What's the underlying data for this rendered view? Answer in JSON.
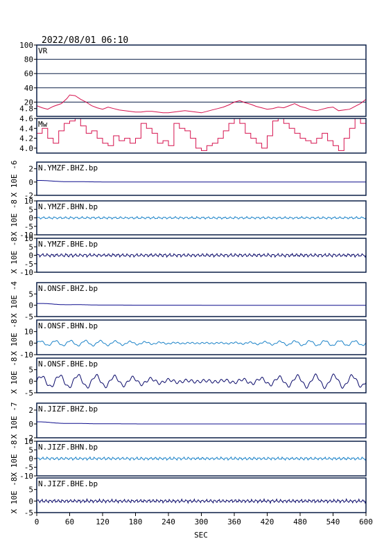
{
  "header": {
    "timestamp": "2022/08/01 06:10"
  },
  "colors": {
    "vr": "#d6124e",
    "mw": "#d6124e",
    "bhz": "#0c0c8c",
    "bhn": "#1a82c8",
    "bhe": "#0a0a6a",
    "frame": "#0a1e46"
  },
  "chart_data": {
    "type": "line",
    "xlabel": "SEC",
    "xlim": [
      0,
      600
    ],
    "xticks": [
      "0",
      "60",
      "120",
      "180",
      "240",
      "300",
      "360",
      "420",
      "480",
      "540",
      "600"
    ],
    "panels": [
      {
        "label": "VR",
        "ylim": [
          0,
          100
        ],
        "yticks": [
          {
            "v": 20,
            "t": "20"
          },
          {
            "v": 40,
            "t": "40"
          },
          {
            "v": 60,
            "t": "60"
          },
          {
            "v": 80,
            "t": "80"
          },
          {
            "v": 100,
            "t": "100"
          }
        ],
        "gridlines": [
          20,
          40,
          60,
          80
        ],
        "series": [
          {
            "color_key": "vr",
            "x": [
              0,
              10,
              20,
              30,
              45,
              55,
              60,
              70,
              80,
              90,
              100,
              110,
              120,
              130,
              140,
              150,
              160,
              170,
              180,
              190,
              200,
              210,
              220,
              230,
              240,
              250,
              260,
              270,
              280,
              290,
              300,
              310,
              320,
              330,
              340,
              350,
              360,
              370,
              380,
              390,
              400,
              410,
              420,
              430,
              440,
              450,
              460,
              470,
              480,
              490,
              500,
              510,
              520,
              530,
              540,
              550,
              560,
              570,
              580,
              590,
              600
            ],
            "y": [
              15,
              12,
              10,
              14,
              18,
              25,
              30,
              29,
              24,
              20,
              15,
              12,
              10,
              13,
              11,
              9,
              8,
              7,
              6,
              6,
              7,
              7,
              6,
              5,
              5,
              6,
              7,
              8,
              7,
              6,
              5,
              7,
              9,
              11,
              13,
              16,
              20,
              22,
              19,
              17,
              14,
              12,
              10,
              11,
              13,
              12,
              15,
              18,
              14,
              12,
              9,
              8,
              10,
              12,
              13,
              8,
              9,
              10,
              14,
              18,
              24
            ]
          }
        ]
      },
      {
        "label": "Mw",
        "ylim": [
          3.9,
          4.6
        ],
        "yticks": [
          {
            "v": 4.0,
            "t": "4.0"
          },
          {
            "v": 4.2,
            "t": "4.2"
          },
          {
            "v": 4.4,
            "t": "4.4"
          },
          {
            "v": 4.6,
            "t": "4.6"
          },
          {
            "v": 4.8,
            "t": "4.8"
          }
        ],
        "series": [
          {
            "color_key": "mw",
            "x": [
              0,
              10,
              20,
              30,
              40,
              50,
              60,
              70,
              80,
              90,
              100,
              110,
              120,
              130,
              140,
              150,
              160,
              170,
              180,
              190,
              200,
              210,
              220,
              230,
              240,
              250,
              260,
              270,
              280,
              290,
              300,
              310,
              320,
              330,
              340,
              350,
              360,
              370,
              380,
              390,
              400,
              410,
              420,
              430,
              440,
              450,
              460,
              470,
              480,
              490,
              500,
              510,
              520,
              530,
              540,
              550,
              560,
              570,
              580,
              590,
              600
            ],
            "y": [
              4.3,
              4.4,
              4.2,
              4.1,
              4.35,
              4.5,
              4.55,
              4.6,
              4.45,
              4.3,
              4.35,
              4.2,
              4.1,
              4.05,
              4.25,
              4.15,
              4.2,
              4.1,
              4.2,
              4.5,
              4.4,
              4.3,
              4.1,
              4.15,
              4.05,
              4.5,
              4.4,
              4.35,
              4.2,
              4.0,
              3.95,
              4.05,
              4.1,
              4.2,
              4.35,
              4.5,
              4.6,
              4.5,
              4.3,
              4.2,
              4.1,
              4.0,
              4.25,
              4.55,
              4.6,
              4.5,
              4.4,
              4.3,
              4.2,
              4.15,
              4.1,
              4.2,
              4.3,
              4.15,
              4.05,
              3.95,
              4.2,
              4.4,
              4.6,
              4.5,
              4.3
            ]
          }
        ]
      },
      {
        "label": "N.YMZF.BHZ.bp",
        "unit": "X 10E -6",
        "ylim": [
          -2,
          3
        ],
        "yticks": [
          {
            "v": -2,
            "t": "-2"
          },
          {
            "v": 0,
            "t": "0"
          },
          {
            "v": 2,
            "t": "2"
          }
        ],
        "color_key": "bhz",
        "wave": {
          "type": "decay",
          "amp": 0.4,
          "cycles": 9,
          "decay": 0.08
        }
      },
      {
        "label": "N.YMZF.BHN.bp",
        "unit": "X 10E -8",
        "ylim": [
          -10,
          10
        ],
        "yticks": [
          {
            "v": -10,
            "t": "-10"
          },
          {
            "v": -5,
            "t": "-5"
          },
          {
            "v": 0,
            "t": "0"
          },
          {
            "v": 5,
            "t": "5"
          },
          {
            "v": 10,
            "t": "10"
          }
        ],
        "color_key": "bhn",
        "wave": {
          "type": "noise",
          "amp": 0.9,
          "cycles": 60
        }
      },
      {
        "label": "N.YMZF.BHE.bp",
        "unit": "X 10E -8",
        "ylim": [
          -10,
          10
        ],
        "yticks": [
          {
            "v": -10,
            "t": "-10"
          },
          {
            "v": -5,
            "t": "-5"
          },
          {
            "v": 0,
            "t": "0"
          },
          {
            "v": 5,
            "t": "5"
          },
          {
            "v": 10,
            "t": "10"
          }
        ],
        "color_key": "bhe",
        "wave": {
          "type": "noise",
          "amp": 1.3,
          "cycles": 70
        }
      },
      {
        "label": "N.ONSF.BHZ.bp",
        "unit": "X 10E -4",
        "ylim": [
          -5,
          10
        ],
        "yticks": [
          {
            "v": -5,
            "t": "-5"
          },
          {
            "v": 0,
            "t": "0"
          },
          {
            "v": 5,
            "t": "5"
          }
        ],
        "color_key": "bhz",
        "wave": {
          "type": "decay",
          "amp": 1.3,
          "cycles": 9,
          "decay": 0.1
        }
      },
      {
        "label": "N.ONSF.BHN.bp",
        "unit": "X 10E -8",
        "ylim": [
          -10,
          20
        ],
        "yticks": [
          {
            "v": -10,
            "t": "-10"
          },
          {
            "v": 0,
            "t": "0"
          },
          {
            "v": 10,
            "t": "10"
          }
        ],
        "color_key": "bhn",
        "wave": {
          "type": "swell",
          "amp": 2.2,
          "cycles": 22
        }
      },
      {
        "label": "N.ONSF.BHE.bp",
        "unit": "X 10E -8",
        "ylim": [
          -5,
          10
        ],
        "yticks": [
          {
            "v": -5,
            "t": "-5"
          },
          {
            "v": 0,
            "t": "0"
          },
          {
            "v": 5,
            "t": "5"
          }
        ],
        "color_key": "bhe",
        "wave": {
          "type": "swell",
          "amp": 2.6,
          "cycles": 18
        }
      },
      {
        "label": "N.JIZF.BHZ.bp",
        "unit": "X 10E -7",
        "ylim": [
          -2,
          3
        ],
        "yticks": [
          {
            "v": -2,
            "t": "-2"
          },
          {
            "v": 0,
            "t": "0"
          },
          {
            "v": 2,
            "t": "2"
          }
        ],
        "color_key": "bhz",
        "wave": {
          "type": "decay",
          "amp": 0.5,
          "cycles": 9,
          "decay": 0.08
        }
      },
      {
        "label": "N.JIZF.BHN.bp",
        "unit": "X 10E -8",
        "ylim": [
          -10,
          10
        ],
        "yticks": [
          {
            "v": -10,
            "t": "-10"
          },
          {
            "v": -5,
            "t": "-5"
          },
          {
            "v": 0,
            "t": "0"
          },
          {
            "v": 5,
            "t": "5"
          },
          {
            "v": 10,
            "t": "10"
          }
        ],
        "color_key": "bhn",
        "wave": {
          "type": "noise",
          "amp": 1.1,
          "cycles": 70
        }
      },
      {
        "label": "N.JIZF.BHE.bp",
        "unit": "X 10E -8",
        "ylim": [
          -5,
          10
        ],
        "yticks": [
          {
            "v": -5,
            "t": "-5"
          },
          {
            "v": 0,
            "t": "0"
          },
          {
            "v": 5,
            "t": "5"
          }
        ],
        "color_key": "bhe",
        "wave": {
          "type": "noise",
          "amp": 1.0,
          "cycles": 80
        }
      }
    ]
  }
}
